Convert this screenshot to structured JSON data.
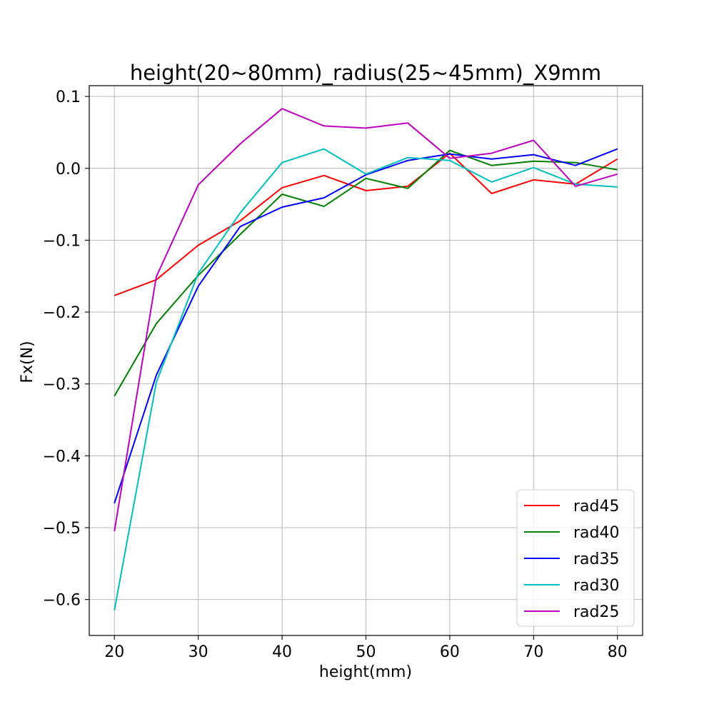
{
  "chart_data": {
    "type": "line",
    "title": "height(20~80mm)_radius(25~45mm)_X9mm",
    "xlabel": "height(mm)",
    "ylabel": "Fx(N)",
    "xlim": [
      17,
      83
    ],
    "ylim": [
      -0.65,
      0.115
    ],
    "xticks": [
      20,
      30,
      40,
      50,
      60,
      70,
      80
    ],
    "xtick_labels": [
      "20",
      "30",
      "40",
      "50",
      "60",
      "70",
      "80"
    ],
    "yticks": [
      0.1,
      0.0,
      -0.1,
      -0.2,
      -0.3,
      -0.4,
      -0.5,
      -0.6
    ],
    "ytick_labels": [
      "0.1",
      "0.0",
      "−0.1",
      "−0.2",
      "−0.3",
      "−0.4",
      "−0.5",
      "−0.6"
    ],
    "grid": true,
    "legend_position": "lower-right",
    "x": [
      20,
      25,
      30,
      35,
      40,
      45,
      50,
      55,
      60,
      65,
      70,
      75,
      80
    ],
    "series": [
      {
        "name": "rad45",
        "color": "#ff0000",
        "values": [
          -0.177,
          -0.155,
          -0.107,
          -0.073,
          -0.027,
          -0.01,
          -0.031,
          -0.025,
          0.021,
          -0.035,
          -0.016,
          -0.022,
          0.013
        ]
      },
      {
        "name": "rad40",
        "color": "#008000",
        "values": [
          -0.317,
          -0.216,
          -0.149,
          -0.092,
          -0.036,
          -0.053,
          -0.014,
          -0.028,
          0.025,
          0.004,
          0.01,
          0.008,
          -0.002
        ]
      },
      {
        "name": "rad35",
        "color": "#0000ff",
        "values": [
          -0.466,
          -0.288,
          -0.164,
          -0.081,
          -0.054,
          -0.041,
          -0.009,
          0.011,
          0.02,
          0.013,
          0.019,
          0.004,
          0.027
        ]
      },
      {
        "name": "rad30",
        "color": "#00bfbf",
        "values": [
          -0.615,
          -0.298,
          -0.146,
          -0.062,
          0.008,
          0.027,
          -0.008,
          0.015,
          0.011,
          -0.019,
          0.001,
          -0.022,
          -0.026
        ]
      },
      {
        "name": "rad25",
        "color": "#bf00bf",
        "values": [
          -0.505,
          -0.151,
          -0.023,
          0.034,
          0.083,
          0.059,
          0.056,
          0.063,
          0.014,
          0.021,
          0.039,
          -0.025,
          -0.008
        ]
      }
    ]
  }
}
